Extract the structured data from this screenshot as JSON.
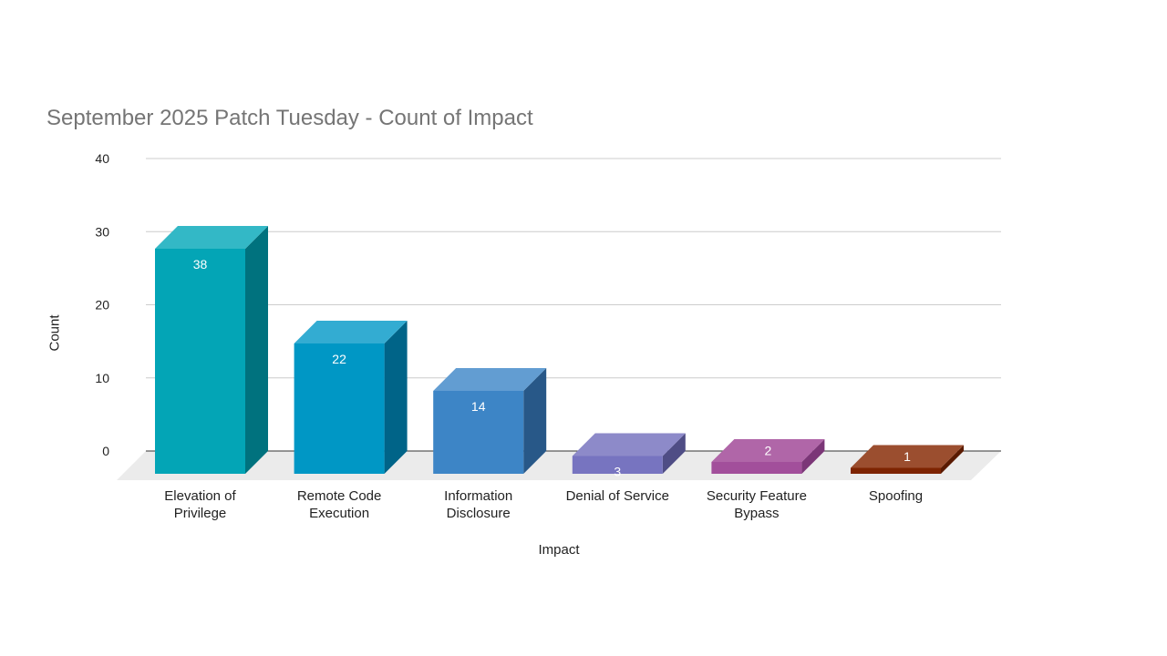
{
  "chart_data": {
    "type": "bar",
    "title": "September 2025 Patch Tuesday - Count of Impact",
    "xlabel": "Impact",
    "ylabel": "Count",
    "ylim": [
      0,
      40
    ],
    "yticks": [
      0,
      10,
      20,
      30,
      40
    ],
    "grid": true,
    "three_d": true,
    "legend": "none",
    "categories": [
      [
        "Elevation of",
        "Privilege"
      ],
      [
        "Remote Code",
        "Execution"
      ],
      [
        "Information",
        "Disclosure"
      ],
      [
        "Denial of Service"
      ],
      [
        "Security Feature",
        "Bypass"
      ],
      [
        "Spoofing"
      ]
    ],
    "values": [
      38,
      22,
      14,
      3,
      2,
      1
    ],
    "colors": [
      {
        "front": "#03a5b6",
        "top": "#33b8c6",
        "side": "#00727e"
      },
      {
        "front": "#0097c5",
        "top": "#33acd2",
        "side": "#006488"
      },
      {
        "front": "#3d85c6",
        "top": "#629dd2",
        "side": "#285888"
      },
      {
        "front": "#7774c0",
        "top": "#8d8ac9",
        "side": "#4f4d85"
      },
      {
        "front": "#a24f9b",
        "top": "#b066a8",
        "side": "#7b3677"
      },
      {
        "front": "#7e2402",
        "top": "#9b4e2f",
        "side": "#5a1a00"
      }
    ]
  }
}
